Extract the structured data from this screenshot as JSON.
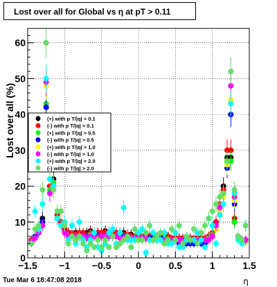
{
  "chart_data": {
    "type": "scatter",
    "title": "Lost over all for Global vs   η at pT > 0.11",
    "xlabel": "η",
    "ylabel": "Lost over all (%)",
    "xlim": [
      -1.5,
      1.5
    ],
    "ylim": [
      0,
      64
    ],
    "x_ticks": [
      "−1.5",
      "−1",
      "−0.5",
      "0",
      "0.5",
      "1",
      "1.5"
    ],
    "y_ticks": [
      "0",
      "10",
      "20",
      "30",
      "40",
      "50",
      "60"
    ],
    "grid": true,
    "legend_position": "left-middle",
    "x": [
      -1.45,
      -1.4,
      -1.35,
      -1.3,
      -1.25,
      -1.2,
      -1.15,
      -1.1,
      -1.05,
      -1.0,
      -0.95,
      -0.9,
      -0.85,
      -0.8,
      -0.75,
      -0.7,
      -0.65,
      -0.6,
      -0.55,
      -0.5,
      -0.45,
      -0.4,
      -0.35,
      -0.3,
      -0.25,
      -0.2,
      -0.15,
      -0.1,
      -0.05,
      0.0,
      0.05,
      0.1,
      0.15,
      0.2,
      0.25,
      0.3,
      0.35,
      0.4,
      0.45,
      0.5,
      0.55,
      0.6,
      0.65,
      0.7,
      0.75,
      0.8,
      0.85,
      0.9,
      0.95,
      1.0,
      1.05,
      1.1,
      1.15,
      1.2,
      1.25,
      1.3,
      1.35,
      1.4,
      1.45
    ],
    "series": [
      {
        "name": "(+) with p T/|q| > 0.1",
        "color": "#000000",
        "values": [
          5,
          6,
          7,
          11,
          33,
          20,
          22,
          11,
          10,
          8,
          7,
          7,
          7,
          7,
          7,
          7,
          7.5,
          7,
          7,
          7,
          7.5,
          7,
          7,
          7,
          7,
          7,
          6.5,
          6.5,
          6,
          6,
          6,
          6,
          6,
          6,
          6,
          6,
          6,
          6,
          5.5,
          5.5,
          5.5,
          5.5,
          5.5,
          5.5,
          5.5,
          5.5,
          5.5,
          5,
          6,
          7,
          10,
          15,
          20,
          28,
          28,
          10,
          6,
          5,
          5
        ]
      },
      {
        "name": "(-) with p T/|q| > 0.1",
        "color": "#ff0000",
        "values": [
          5,
          6,
          7,
          10,
          33,
          20,
          21,
          12,
          10,
          8,
          7,
          7,
          6.5,
          7,
          7,
          6.5,
          7,
          7,
          7,
          7,
          7,
          7,
          7,
          7,
          7,
          6.5,
          6.5,
          6,
          6,
          6,
          6,
          6,
          6,
          6,
          6,
          6,
          6,
          6,
          5.5,
          5.5,
          5.5,
          5.5,
          5.5,
          5.5,
          5.5,
          5.5,
          5.5,
          5.5,
          6,
          7,
          10,
          15,
          19,
          30,
          30,
          11,
          6,
          5,
          5
        ]
      },
      {
        "name": "(+) with p T/|q| > 0.5",
        "color": "#00ff00",
        "values": [
          4.5,
          6,
          7,
          10,
          43,
          19,
          21,
          11,
          9,
          7,
          6,
          6,
          6,
          6,
          6,
          6,
          6.5,
          6,
          6,
          6,
          6,
          6,
          6,
          6,
          6,
          6,
          6,
          5.5,
          5.5,
          5.5,
          5.5,
          5.5,
          5.5,
          5.5,
          5.5,
          5.5,
          5.5,
          5,
          5,
          5,
          5,
          5,
          5,
          5,
          5,
          5,
          5,
          5,
          5.5,
          6.5,
          9,
          14,
          18,
          27,
          27,
          10,
          6,
          5,
          5
        ]
      },
      {
        "name": "(-) with p T/|q| > 0.5",
        "color": "#0000ff",
        "values": [
          4.5,
          6,
          7,
          10,
          42,
          18,
          20,
          11,
          9,
          7,
          6,
          6,
          6,
          6,
          6,
          6,
          6,
          6,
          6,
          6,
          6,
          6,
          6,
          6,
          6,
          6,
          6,
          5.5,
          5.5,
          5.5,
          5.5,
          5.5,
          5.5,
          5.5,
          5.5,
          5.5,
          5,
          5,
          5,
          5,
          4,
          4,
          4,
          4,
          4,
          4,
          4,
          4,
          5,
          6,
          8,
          13,
          17,
          25,
          40,
          15,
          5,
          4.5,
          4.5
        ]
      },
      {
        "name": "(+) with p T/|q| > 1.0",
        "color": "#ffff00",
        "values": [
          4.5,
          5.5,
          7,
          9,
          48,
          18,
          20,
          11,
          9,
          7,
          6,
          6,
          6,
          6,
          6,
          5.5,
          6,
          6,
          5.5,
          6,
          6,
          6,
          6,
          6,
          5.5,
          5.5,
          5.5,
          5.5,
          5.5,
          5.5,
          5.5,
          5.5,
          5,
          5,
          5,
          5,
          5,
          5,
          5,
          5,
          5,
          5,
          5,
          5,
          5,
          5,
          5,
          5,
          5,
          6,
          8,
          13,
          17,
          26,
          44,
          16,
          5,
          4.5,
          4.5
        ]
      },
      {
        "name": "(-) with p T/|q| > 1.0",
        "color": "#ff00ff",
        "values": [
          4.5,
          5.5,
          7,
          9,
          49,
          18,
          20,
          11,
          9,
          7,
          6,
          6,
          6,
          6,
          6,
          5.5,
          6,
          6,
          5.5,
          6,
          6,
          6,
          6,
          6,
          5.5,
          5.5,
          5.5,
          5.5,
          5.5,
          5.5,
          5.5,
          5.5,
          5,
          5,
          5,
          5,
          5,
          5,
          5,
          5,
          5,
          5,
          5,
          5,
          5,
          5,
          5,
          5,
          5,
          6,
          9,
          14,
          18,
          27,
          48,
          17,
          6,
          5,
          5
        ]
      },
      {
        "name": "(+) with p T/|q| > 2.0",
        "color": "#00ffff",
        "values": [
          4,
          13,
          8,
          15,
          50,
          22,
          20,
          11,
          9,
          10,
          5,
          9,
          4,
          10,
          5,
          3,
          5,
          7,
          3,
          2,
          4,
          7,
          8,
          4,
          7,
          14,
          5,
          5,
          5,
          7,
          8,
          1.5,
          5,
          7,
          5,
          5,
          7,
          4,
          4,
          7,
          3,
          3,
          5,
          5,
          5,
          7,
          5,
          3,
          11,
          9,
          4,
          12,
          15,
          27,
          43,
          18,
          5,
          4,
          9
        ]
      },
      {
        "name": "(-) with p T/|q| > 2.0",
        "color": "#66dd66",
        "values": [
          4,
          8,
          9,
          19,
          60,
          25,
          19,
          13,
          13,
          9,
          4,
          6,
          5,
          6,
          4,
          2,
          4,
          3,
          5,
          3,
          5,
          3,
          6,
          3,
          4,
          5,
          6,
          3,
          8,
          5,
          5,
          7,
          9,
          5,
          6,
          7,
          4,
          5,
          8,
          5,
          9,
          4,
          6,
          5,
          8,
          4,
          7,
          9,
          11,
          13,
          15,
          17,
          18,
          27,
          52,
          19,
          6,
          5,
          9
        ]
      }
    ],
    "footer": "Tue Mar  6 18:47:08 2018"
  }
}
